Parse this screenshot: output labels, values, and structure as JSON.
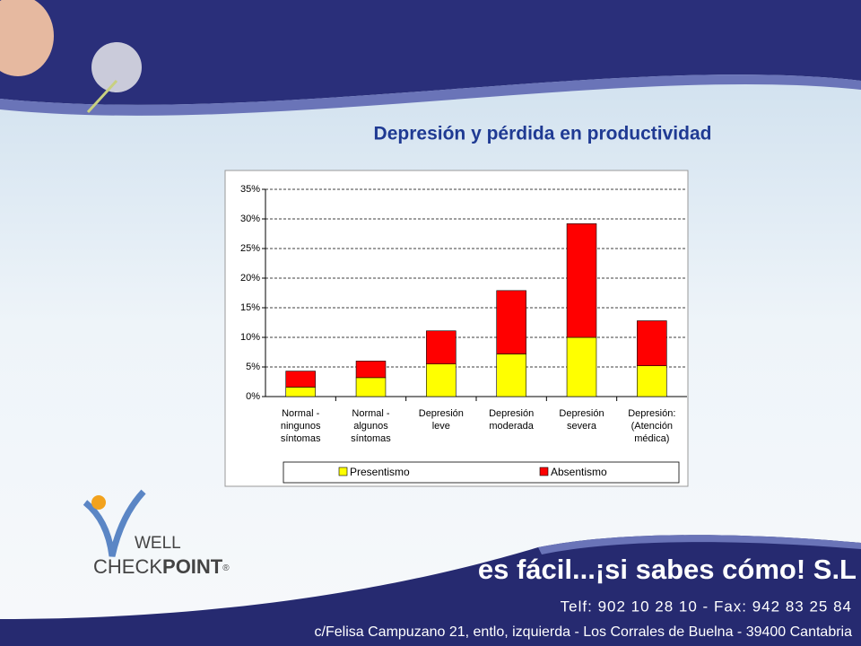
{
  "chart_data": {
    "type": "stacked_bar",
    "title": "Depresión y pérdida en productividad",
    "categories": [
      "Normal - ningunos síntomas",
      "Normal - algunos síntomas",
      "Depresión leve",
      "Depresión moderada",
      "Depresión severa",
      "Depresión: (Atención médica)"
    ],
    "series": [
      {
        "name": "Presentismo",
        "color": "#ffff00",
        "values": [
          1.6,
          3.2,
          5.5,
          7.2,
          10,
          5.2
        ]
      },
      {
        "name": "Absentismo",
        "color": "#ff0000",
        "values": [
          2.7,
          2.8,
          5.6,
          10.7,
          19.2,
          7.6
        ]
      }
    ],
    "ylim": [
      0,
      35
    ],
    "yticks": [
      {
        "value": 0,
        "label": "0%"
      },
      {
        "value": 5,
        "label": "5%"
      },
      {
        "value": 10,
        "label": "10%"
      },
      {
        "value": 15,
        "label": "15%"
      },
      {
        "value": 20,
        "label": "20%"
      },
      {
        "value": 25,
        "label": "25%"
      },
      {
        "value": 30,
        "label": "30%"
      },
      {
        "value": 35,
        "label": "35%"
      }
    ],
    "grid": true,
    "legend": "bottom"
  },
  "logo": {
    "top": "WELL",
    "left": "CHECK",
    "right": "POINT",
    "mark": "®"
  },
  "footer": {
    "slogan": "es fácil...¡si sabes cómo! S.L",
    "phone": "Telf: 902 10 28 10 - Fax: 942 83 25 84",
    "address": "c/Felisa Campuzano 21, entlo, izquierda - Los Corrales de Buelna - 39400 Cantabria"
  }
}
